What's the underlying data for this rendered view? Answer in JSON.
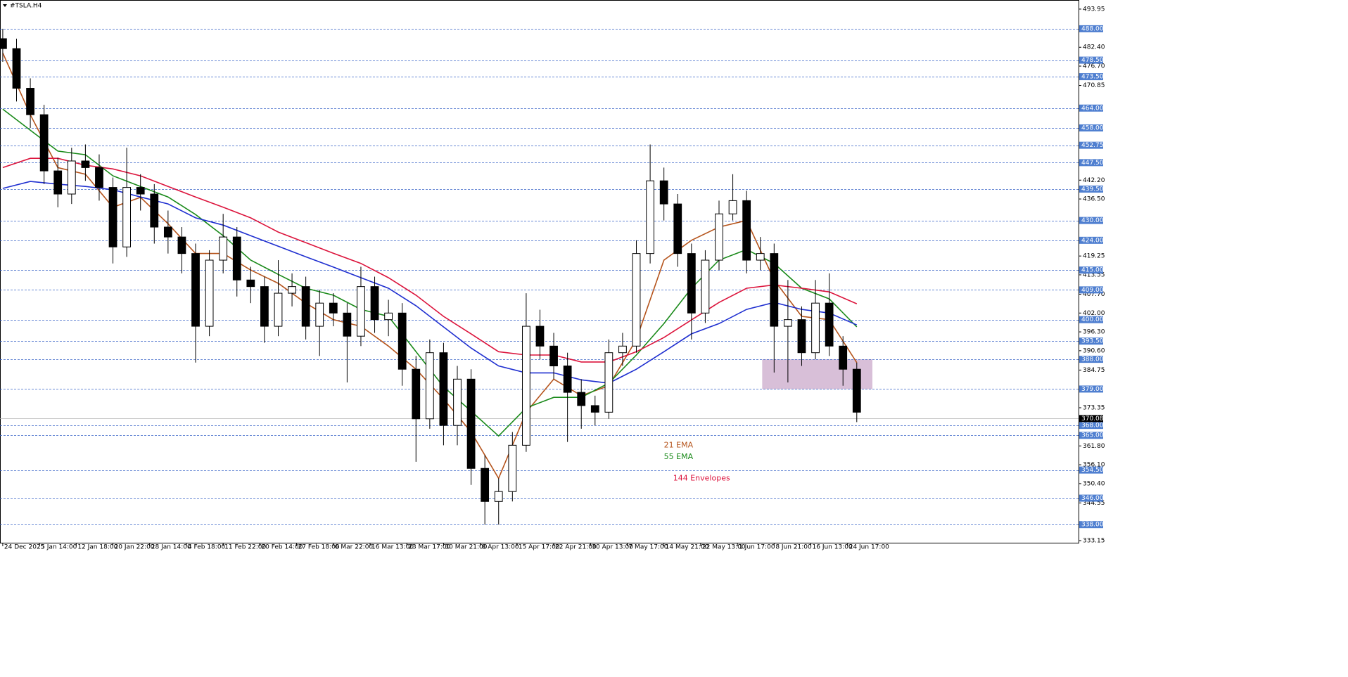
{
  "chart_data": {
    "type": "candlestick",
    "title": "#TSLA.H4",
    "xlim": [
      -0.6,
      234.3
    ],
    "ylim": [
      332.3,
      496.7
    ],
    "xticks": [
      {
        "value": 0,
        "label": "24 Dec 2025"
      },
      {
        "value": 8,
        "label": "5 Jan 14:00"
      },
      {
        "value": 16,
        "label": "12 Jan 18:00"
      },
      {
        "value": 24,
        "label": "20 Jan 22:00"
      },
      {
        "value": 32,
        "label": "28 Jan 14:00"
      },
      {
        "value": 40,
        "label": "4 Feb 18:00"
      },
      {
        "value": 48,
        "label": "11 Feb 22:00"
      },
      {
        "value": 56,
        "label": "20 Feb 14:00"
      },
      {
        "value": 64,
        "label": "27 Feb 18:00"
      },
      {
        "value": 72,
        "label": "6 Mar 22:00"
      },
      {
        "value": 80,
        "label": "16 Mar 13:00"
      },
      {
        "value": 88,
        "label": "23 Mar 17:00"
      },
      {
        "value": 96,
        "label": "30 Mar 21:00"
      },
      {
        "value": 104,
        "label": "8 Apr 13:00"
      },
      {
        "value": 112,
        "label": "15 Apr 17:00"
      },
      {
        "value": 120,
        "label": "22 Apr 21:00"
      },
      {
        "value": 128,
        "label": "30 Apr 13:00"
      },
      {
        "value": 136,
        "label": "7 May 17:00"
      },
      {
        "value": 144,
        "label": "14 May 21:00"
      },
      {
        "value": 152,
        "label": "22 May 13:00"
      },
      {
        "value": 160,
        "label": "1 Jun 17:00"
      },
      {
        "value": 168,
        "label": "8 Jun 21:00"
      },
      {
        "value": 176,
        "label": "16 Jun 13:00"
      },
      {
        "value": 184,
        "label": "24 Jun 17:00"
      }
    ],
    "yticks": [
      493.95,
      {
        "value": 482.4,
        "label": "482.40"
      },
      {
        "value": 476.7,
        "label": "476.70"
      },
      470.85,
      {
        "value": 442.2,
        "label": "442.20"
      },
      {
        "value": 436.5,
        "label": "436.50"
      },
      419.25,
      413.55,
      {
        "value": 407.7,
        "label": "407.70"
      },
      {
        "value": 402,
        "label": "402.00"
      },
      {
        "value": 396.3,
        "label": "396.30"
      },
      {
        "value": 390.6,
        "label": "390.60"
      },
      384.75,
      373.35,
      {
        "value": 361.8,
        "label": "361.80"
      },
      {
        "value": 356.1,
        "label": "356.10"
      },
      {
        "value": 350.4,
        "label": "350.40"
      },
      344.55,
      333.15
    ],
    "levels": {
      "color": "#3a64c8",
      "values": [
        {
          "value": 488,
          "label": "488.00"
        },
        {
          "value": 478.5,
          "label": "478.50"
        },
        {
          "value": 473.5,
          "label": "473.50"
        },
        {
          "value": 464,
          "label": "464.00"
        },
        {
          "value": 458,
          "label": "458.00"
        },
        {
          "value": 452.75,
          "label": "452.75"
        },
        {
          "value": 447.5,
          "label": "447.50"
        },
        {
          "value": 439.5,
          "label": "439.50"
        },
        {
          "value": 430,
          "label": "430.00"
        },
        {
          "value": 424,
          "label": "424.00"
        },
        {
          "value": 415,
          "label": "415.00"
        },
        {
          "value": 409,
          "label": "409.00"
        },
        {
          "value": 400,
          "label": "400.00"
        },
        {
          "value": 393.5,
          "label": "393.50"
        },
        {
          "value": 388,
          "label": "388.00"
        },
        {
          "value": 379,
          "label": "379.00"
        },
        {
          "value": 368,
          "label": "368.00"
        },
        {
          "value": 365,
          "label": "365.00"
        },
        {
          "value": 354.5,
          "label": "354.50"
        },
        {
          "value": 346,
          "label": "346.00"
        },
        {
          "value": 338,
          "label": "338.00"
        }
      ]
    },
    "current_price": {
      "value": 370.08,
      "label": "370.08"
    },
    "zone": {
      "x": [
        165.4,
        189.4
      ],
      "y": [
        379,
        388
      ],
      "color": "#d8bfd8"
    },
    "candles": {
      "x": [
        0,
        3,
        6,
        9,
        12,
        15,
        18,
        21,
        24,
        27,
        30,
        33,
        36,
        39,
        42,
        45,
        48,
        51,
        54,
        57,
        60,
        63,
        66,
        69,
        72,
        75,
        78,
        81,
        84,
        87,
        90,
        93,
        96,
        99,
        102,
        105,
        108,
        111,
        114,
        117,
        120,
        123,
        126,
        129,
        132,
        135,
        138,
        141,
        144,
        147,
        150,
        153,
        156,
        159,
        162,
        165,
        168,
        171,
        174,
        177,
        180,
        183,
        186
      ],
      "open": [
        485,
        482,
        470,
        462,
        445,
        438,
        448,
        446,
        440,
        422,
        440,
        438,
        428,
        425,
        420,
        398,
        418,
        425,
        412,
        410,
        398,
        408,
        410,
        398,
        405,
        402,
        395,
        410,
        400,
        402,
        385,
        370,
        390,
        368,
        382,
        355,
        345,
        348,
        362,
        398,
        392,
        386,
        378,
        374,
        372,
        390,
        392,
        420,
        442,
        435,
        420,
        402,
        418,
        432,
        436,
        418,
        420,
        398,
        400,
        390,
        405,
        392,
        385
      ],
      "high": [
        488,
        485,
        473,
        465,
        449,
        452,
        453,
        450,
        443,
        452,
        444,
        441,
        433,
        428,
        423,
        421,
        432,
        428,
        416,
        413,
        418,
        414,
        413,
        409,
        408,
        405,
        416,
        413,
        406,
        405,
        389,
        394,
        393,
        386,
        385,
        359,
        352,
        366,
        408,
        403,
        396,
        390,
        382,
        377,
        394,
        396,
        424,
        453,
        446,
        438,
        423,
        421,
        436,
        444,
        439,
        425,
        423,
        412,
        404,
        412,
        414,
        395,
        387
      ],
      "low": [
        478,
        466,
        458,
        441,
        434,
        435,
        442,
        436,
        417,
        419,
        433,
        423,
        420,
        414,
        387,
        395,
        414,
        407,
        405,
        393,
        395,
        404,
        394,
        389,
        398,
        381,
        392,
        396,
        395,
        380,
        357,
        367,
        362,
        362,
        350,
        338,
        338,
        345,
        360,
        388,
        382,
        363,
        367,
        368,
        370,
        386,
        390,
        417,
        430,
        416,
        394,
        399,
        415,
        430,
        414,
        415,
        384,
        381,
        386,
        388,
        389,
        380,
        369
      ],
      "close": [
        482,
        470,
        462,
        445,
        438,
        448,
        446,
        440,
        422,
        440,
        438,
        428,
        425,
        420,
        398,
        418,
        425,
        412,
        410,
        398,
        408,
        410,
        398,
        405,
        402,
        395,
        410,
        400,
        402,
        385,
        370,
        390,
        368,
        382,
        355,
        345,
        348,
        362,
        398,
        392,
        386,
        378,
        374,
        372,
        390,
        392,
        420,
        442,
        435,
        420,
        402,
        418,
        432,
        436,
        418,
        420,
        398,
        400,
        390,
        405,
        392,
        385,
        372
      ]
    },
    "lines": {
      "x": [
        0,
        6,
        12,
        18,
        24,
        30,
        36,
        42,
        48,
        54,
        60,
        66,
        72,
        78,
        84,
        90,
        96,
        102,
        108,
        114,
        120,
        126,
        132,
        138,
        144,
        150,
        156,
        162,
        168,
        174,
        180,
        186
      ],
      "series": [
        {
          "color": "#b5541c",
          "values": [
            480.7,
            462,
            446,
            444,
            434,
            437,
            429,
            420,
            420,
            415,
            411,
            405,
            400,
            398,
            392,
            385,
            376,
            366,
            352,
            372,
            382,
            377,
            380,
            394,
            418,
            424,
            428,
            430,
            412,
            401,
            400,
            387
          ]
        },
        {
          "color": "#1a8a1a",
          "values": [
            463.7,
            457.3,
            451,
            449.9,
            443.5,
            440.3,
            437.1,
            431.8,
            425.4,
            418,
            413.7,
            409.5,
            407.4,
            403.1,
            401,
            390.3,
            379.7,
            372.3,
            364.8,
            373.3,
            376.5,
            376.5,
            380.8,
            389.3,
            398.8,
            409.5,
            418,
            421.2,
            417,
            409.5,
            406.3,
            397.8
          ]
        },
        {
          "color": "#dc143c",
          "values": [
            446,
            448.8,
            448.8,
            446.7,
            445.6,
            443.5,
            440.3,
            437.1,
            434,
            430.8,
            426.5,
            423.3,
            420.1,
            417,
            412.7,
            407.4,
            401,
            395.7,
            390.3,
            389.3,
            389.3,
            387.2,
            387.2,
            390.3,
            394.6,
            399.9,
            405.2,
            409.5,
            410.5,
            409.5,
            408.4,
            404.8
          ]
        },
        {
          "color": "#1f2fd0",
          "values": [
            439.7,
            441.8,
            441,
            440.3,
            439.3,
            437.1,
            435,
            430.8,
            428.6,
            425.4,
            422.2,
            419,
            415.9,
            412.7,
            409.5,
            404.2,
            397.8,
            391.4,
            386,
            383.9,
            383.9,
            381.8,
            380.8,
            385,
            390.3,
            395.7,
            398.8,
            403.1,
            405.2,
            403.1,
            402,
            398.4
          ]
        }
      ]
    },
    "annotations": [
      {
        "text": "21 EMA",
        "color": "#b5541c",
        "x": 144,
        "y": 362
      },
      {
        "text": "55 EMA",
        "color": "#1a8a1a",
        "x": 144,
        "y": 358.5
      },
      {
        "text": "144 Envelopes",
        "color": "#dc143c",
        "x": 146,
        "y": 352
      }
    ]
  }
}
